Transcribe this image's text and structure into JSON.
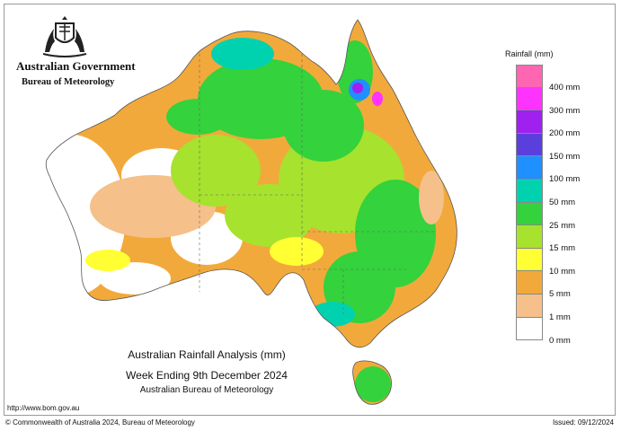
{
  "header": {
    "gov": "Australian Government",
    "bureau": "Bureau of Meteorology"
  },
  "caption": {
    "line1": "Australian Rainfall Analysis (mm)",
    "line2": "Week Ending 9th December 2024",
    "line3": "Australian Bureau of Meteorology"
  },
  "footer": {
    "url": "http://www.bom.gov.au",
    "copyright": "© Commonwealth of Australia 2024, Bureau of Meteorology",
    "issued": "Issued: 09/12/2024"
  },
  "legend": {
    "title": "Rainfall (mm)",
    "swatches": [
      {
        "color": "#ff66b2"
      },
      {
        "color": "#ff33ff"
      },
      {
        "color": "#a020f0"
      },
      {
        "color": "#5a3fdd"
      },
      {
        "color": "#1e90ff"
      },
      {
        "color": "#00d2b0"
      },
      {
        "color": "#34d23c"
      },
      {
        "color": "#a6e22e"
      },
      {
        "color": "#ffff33"
      },
      {
        "color": "#f2a93b"
      },
      {
        "color": "#f5c08a"
      },
      {
        "color": "#ffffff"
      }
    ],
    "labels": [
      "400 mm",
      "300 mm",
      "200 mm",
      "150 mm",
      "100 mm",
      "50 mm",
      "25 mm",
      "15 mm",
      "10 mm",
      "5 mm",
      "1 mm",
      "0 mm"
    ]
  }
}
